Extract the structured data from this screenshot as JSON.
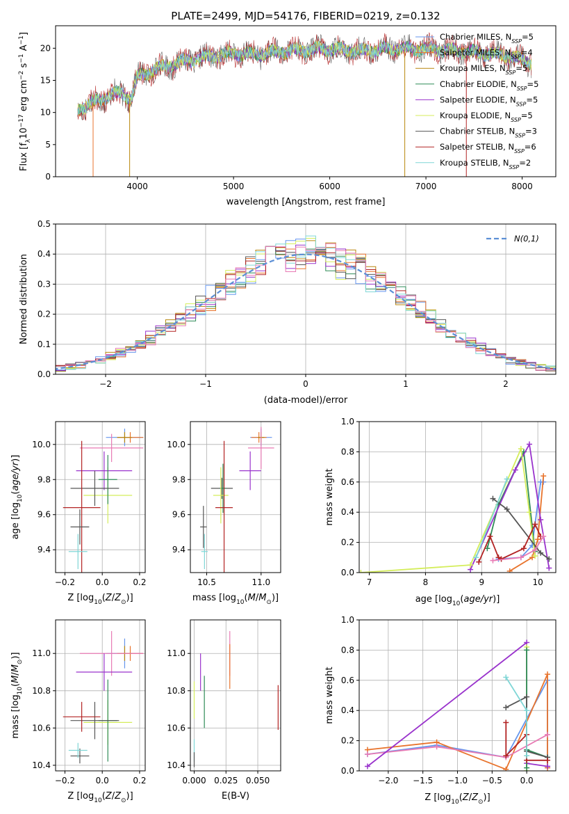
{
  "figure": {
    "title": "PLATE=2499, MJD=54176, FIBERID=0219, z=0.132"
  },
  "palette": {
    "Chabrier MILES": "#6495ed",
    "Salpeter MILES": "#e8732c",
    "Kroupa MILES": "#b8860b",
    "Chabrier ELODIE": "#2e8b57",
    "Salpeter ELODIE": "#9932cc",
    "Kroupa ELODIE": "#d4ed5a",
    "Chabrier STELIB": "#555555",
    "Salpeter STELIB": "#b22222",
    "Kroupa STELIB": "#7fd6d6",
    "extra_pink": "#e87ab4",
    "extra_orange": "#f28020",
    "normal_curve": "#5b8fd6"
  },
  "chart_data": [
    {
      "id": "spectrum",
      "type": "line",
      "xlabel": "wavelength [Angstrom, rest frame]",
      "ylabel": "Flux [f_λ10^-17 erg cm^-2 s^-1 A^-1]",
      "xlim": [
        3150,
        8350
      ],
      "ylim": [
        0,
        23.5
      ],
      "xticks": [
        4000,
        5000,
        6000,
        7000,
        8000
      ],
      "yticks": [
        0,
        5,
        10,
        15,
        20
      ],
      "legend_position": "upper-right",
      "legend": [
        {
          "model": "Chabrier MILES",
          "nssp": "5"
        },
        {
          "model": "Salpeter MILES",
          "nssp": "4"
        },
        {
          "model": "Kroupa MILES",
          "nssp": "5"
        },
        {
          "model": "Chabrier ELODIE",
          "nssp": "5"
        },
        {
          "model": "Salpeter ELODIE",
          "nssp": "5"
        },
        {
          "model": "Kroupa ELODIE",
          "nssp": "5"
        },
        {
          "model": "Chabrier STELIB",
          "nssp": "3"
        },
        {
          "model": "Salpeter STELIB",
          "nssp": "6"
        },
        {
          "model": "Kroupa STELIB",
          "nssp": "2"
        }
      ],
      "continuum": [
        [
          3380,
          10.5
        ],
        [
          3500,
          11.2
        ],
        [
          3600,
          12.0
        ],
        [
          3750,
          12.8
        ],
        [
          3850,
          13.0
        ],
        [
          3930,
          12.0
        ],
        [
          4000,
          15.5
        ],
        [
          4200,
          16.8
        ],
        [
          4500,
          18.0
        ],
        [
          4800,
          18.8
        ],
        [
          5000,
          19.2
        ],
        [
          5200,
          19.0
        ],
        [
          5500,
          19.5
        ],
        [
          5800,
          19.8
        ],
        [
          6000,
          19.9
        ],
        [
          6300,
          19.5
        ],
        [
          6600,
          19.9
        ],
        [
          7000,
          19.9
        ],
        [
          7400,
          19.5
        ],
        [
          7800,
          19.0
        ],
        [
          8100,
          17.8
        ]
      ],
      "drops": [
        {
          "series": "Salpeter MILES",
          "x": 3540
        },
        {
          "series": "Kroupa MILES",
          "x": 3920
        },
        {
          "series": "Kroupa MILES",
          "x": 6780
        },
        {
          "series": "Salpeter STELIB",
          "x": 7420
        }
      ]
    },
    {
      "id": "residual_histogram",
      "type": "histogram",
      "xlabel": "(data-model)/error",
      "ylabel": "Normed distribution",
      "xlim": [
        -2.5,
        2.5
      ],
      "ylim": [
        0,
        0.5
      ],
      "xticks": [
        -2,
        -1,
        0,
        1,
        2
      ],
      "yticks": [
        0.0,
        0.1,
        0.2,
        0.3,
        0.4,
        0.5
      ],
      "legend": [
        "N(0,1)"
      ],
      "legend_position": "upper-right",
      "grid": true,
      "bin_width": 0.1,
      "normal": {
        "mean": 0,
        "sigma": 1
      }
    },
    {
      "id": "age_vs_Z",
      "type": "errorbar",
      "xlabel": "Z [log10(Z/Z⊙)]",
      "ylabel": "age  [log10(age/yr)]",
      "xlim": [
        -0.25,
        0.23
      ],
      "ylim": [
        9.27,
        10.13
      ],
      "xticks": [
        -0.2,
        0.0,
        0.2
      ],
      "yticks": [
        9.4,
        9.6,
        9.8,
        10.0
      ],
      "grid": true,
      "points": [
        {
          "series": "Chabrier MILES",
          "x": 0.12,
          "xerr": 0.1,
          "y": 10.04,
          "yerr": 0.05
        },
        {
          "series": "Salpeter MILES",
          "x": 0.15,
          "xerr": 0.07,
          "y": 10.04,
          "yerr": 0.03
        },
        {
          "series": "Kroupa MILES",
          "x": 0.12,
          "xerr": 0.04,
          "y": 10.04,
          "yerr": 0.03
        },
        {
          "series": "extra_pink",
          "x": 0.05,
          "xerr": 0.17,
          "y": 9.98,
          "yerr": 0.08
        },
        {
          "series": "Kroupa ELODIE",
          "x": 0.03,
          "xerr": 0.13,
          "y": 9.71,
          "yerr": 0.16
        },
        {
          "series": "Salpeter ELODIE",
          "x": 0.01,
          "xerr": 0.15,
          "y": 9.85,
          "yerr": 0.11
        },
        {
          "series": "Chabrier ELODIE",
          "x": 0.03,
          "xerr": 0.05,
          "y": 9.8,
          "yerr": 0.14
        },
        {
          "series": "Chabrier STELIB",
          "x": -0.04,
          "xerr": 0.13,
          "y": 9.75,
          "yerr": 0.1
        },
        {
          "series": "Salpeter STELIB",
          "x": -0.11,
          "xerr": 0.1,
          "y": 9.64,
          "yerr": 0.38
        },
        {
          "series": "Chabrier STELIB",
          "x": -0.12,
          "xerr": 0.05,
          "y": 9.53,
          "yerr": 0.1
        },
        {
          "series": "Kroupa STELIB",
          "x": -0.13,
          "xerr": 0.05,
          "y": 9.39,
          "yerr": 0.1
        }
      ]
    },
    {
      "id": "age_vs_mass",
      "type": "errorbar",
      "xlabel": "mass [log10(M/M⊙)]",
      "ylabel": "",
      "xlim": [
        10.35,
        11.18
      ],
      "ylim": [
        9.27,
        10.13
      ],
      "xticks": [
        10.5,
        11.0
      ],
      "yticks": [
        9.4,
        9.6,
        9.8,
        10.0
      ],
      "grid": true,
      "points": [
        {
          "series": "Chabrier MILES",
          "x": 11.0,
          "xerr": 0.1,
          "y": 10.04,
          "yerr": 0.05
        },
        {
          "series": "Salpeter MILES",
          "x": 10.98,
          "xerr": 0.07,
          "y": 10.04,
          "yerr": 0.03
        },
        {
          "series": "Kroupa MILES",
          "x": 11.0,
          "xerr": 0.03,
          "y": 10.04,
          "yerr": 0.03
        },
        {
          "series": "extra_pink",
          "x": 11.0,
          "xerr": 0.12,
          "y": 9.98,
          "yerr": 0.12
        },
        {
          "series": "Salpeter ELODIE",
          "x": 10.9,
          "xerr": 0.1,
          "y": 9.85,
          "yerr": 0.11
        },
        {
          "series": "Chabrier STELIB",
          "x": 10.64,
          "xerr": 0.1,
          "y": 9.75,
          "yerr": 0.06
        },
        {
          "series": "Chabrier ELODIE",
          "x": 10.65,
          "xerr": 0.03,
          "y": 9.75,
          "yerr": 0.14
        },
        {
          "series": "Kroupa ELODIE",
          "x": 10.63,
          "xerr": 0.07,
          "y": 9.71,
          "yerr": 0.16
        },
        {
          "series": "Salpeter STELIB",
          "x": 10.66,
          "xerr": 0.08,
          "y": 9.64,
          "yerr": 0.38
        },
        {
          "series": "Chabrier STELIB",
          "x": 10.47,
          "xerr": 0.03,
          "y": 9.53,
          "yerr": 0.12
        },
        {
          "series": "Kroupa STELIB",
          "x": 10.48,
          "xerr": 0.03,
          "y": 9.39,
          "yerr": 0.1
        }
      ]
    },
    {
      "id": "mass_weight_vs_age",
      "type": "line",
      "xlabel": "age  [log10(age/yr)]",
      "ylabel": "mass weight",
      "xlim": [
        6.82,
        10.32
      ],
      "ylim": [
        0,
        1.0
      ],
      "xticks": [
        7,
        8,
        9,
        10
      ],
      "yticks": [
        0.0,
        0.2,
        0.4,
        0.6,
        0.8,
        1.0
      ],
      "grid": true,
      "series": [
        {
          "name": "Chabrier MILES",
          "points": [
            [
              9.3,
              0.09
            ],
            [
              9.7,
              0.1
            ],
            [
              9.9,
              0.18
            ],
            [
              10.05,
              0.6
            ],
            [
              10.1,
              0.6
            ]
          ]
        },
        {
          "name": "Salpeter MILES",
          "points": [
            [
              9.5,
              0.01
            ],
            [
              9.9,
              0.1
            ],
            [
              10.0,
              0.22
            ],
            [
              10.1,
              0.64
            ]
          ]
        },
        {
          "name": "Chabrier ELODIE",
          "points": [
            [
              9.1,
              0.16
            ],
            [
              9.3,
              0.45
            ],
            [
              9.75,
              0.8
            ],
            [
              9.95,
              0.14
            ]
          ]
        },
        {
          "name": "Salpeter ELODIE",
          "points": [
            [
              8.8,
              0.02
            ],
            [
              9.6,
              0.68
            ],
            [
              9.85,
              0.85
            ],
            [
              10.05,
              0.35
            ],
            [
              10.2,
              0.03
            ]
          ]
        },
        {
          "name": "Kroupa ELODIE",
          "points": [
            [
              6.85,
              0.0
            ],
            [
              8.8,
              0.05
            ],
            [
              9.7,
              0.82
            ],
            [
              9.85,
              0.4
            ],
            [
              9.95,
              0.11
            ]
          ]
        },
        {
          "name": "Chabrier STELIB",
          "points": [
            [
              9.2,
              0.49
            ],
            [
              9.45,
              0.42
            ],
            [
              10.05,
              0.13
            ],
            [
              10.2,
              0.09
            ]
          ]
        },
        {
          "name": "Salpeter STELIB",
          "points": [
            [
              8.95,
              0.07
            ],
            [
              9.15,
              0.24
            ],
            [
              9.3,
              0.1
            ],
            [
              9.35,
              0.09
            ],
            [
              9.75,
              0.16
            ],
            [
              9.95,
              0.32
            ],
            [
              10.05,
              0.24
            ]
          ]
        },
        {
          "name": "Kroupa STELIB",
          "points": [
            [
              8.9,
              0.1
            ],
            [
              9.45,
              0.62
            ]
          ]
        },
        {
          "name": "extra_pink",
          "points": [
            [
              9.2,
              0.08
            ],
            [
              9.7,
              0.1
            ],
            [
              9.95,
              0.15
            ],
            [
              10.1,
              0.24
            ]
          ]
        }
      ]
    },
    {
      "id": "mass_vs_Z",
      "type": "errorbar",
      "xlabel": "Z [log10(Z/Z⊙)]",
      "ylabel": "mass [log10(M/M⊙)]",
      "xlim": [
        -0.25,
        0.23
      ],
      "ylim": [
        10.37,
        11.18
      ],
      "xticks": [
        -0.2,
        0.0,
        0.2
      ],
      "yticks": [
        10.4,
        10.6,
        10.8,
        11.0
      ],
      "grid": true,
      "points": [
        {
          "series": "Chabrier MILES",
          "x": 0.12,
          "xerr": 0.1,
          "y": 11.0,
          "yerr": 0.08
        },
        {
          "series": "Salpeter MILES",
          "x": 0.15,
          "xerr": 0.07,
          "y": 11.0,
          "yerr": 0.04
        },
        {
          "series": "Kroupa MILES",
          "x": 0.12,
          "xerr": 0.04,
          "y": 11.0,
          "yerr": 0.04
        },
        {
          "series": "extra_pink",
          "x": 0.05,
          "xerr": 0.17,
          "y": 11.0,
          "yerr": 0.12
        },
        {
          "series": "Salpeter ELODIE",
          "x": 0.01,
          "xerr": 0.15,
          "y": 10.9,
          "yerr": 0.1
        },
        {
          "series": "Kroupa ELODIE",
          "x": 0.03,
          "xerr": 0.13,
          "y": 10.63,
          "yerr": 0.12
        },
        {
          "series": "Chabrier ELODIE",
          "x": 0.03,
          "xerr": 0.05,
          "y": 10.64,
          "yerr": 0.22
        },
        {
          "series": "Chabrier STELIB",
          "x": -0.04,
          "xerr": 0.13,
          "y": 10.64,
          "yerr": 0.1
        },
        {
          "series": "Salpeter STELIB",
          "x": -0.11,
          "xerr": 0.1,
          "y": 10.66,
          "yerr": 0.08
        },
        {
          "series": "Chabrier STELIB",
          "x": -0.12,
          "xerr": 0.05,
          "y": 10.45,
          "yerr": 0.04
        },
        {
          "series": "Kroupa STELIB",
          "x": -0.13,
          "xerr": 0.05,
          "y": 10.48,
          "yerr": 0.04
        }
      ]
    },
    {
      "id": "mass_vs_ebv",
      "type": "errorbar",
      "xlabel": "E(B-V)",
      "ylabel": "",
      "xlim": [
        -0.003,
        0.068
      ],
      "ylim": [
        10.37,
        11.18
      ],
      "xticks": [
        0.0,
        0.025,
        0.05
      ],
      "ytick_values": [
        10.4,
        10.6,
        10.8,
        11.0
      ],
      "grid": true,
      "points": [
        {
          "series": "Kroupa ELODIE",
          "x": 0.0,
          "y": 10.75,
          "yerr": 0.1
        },
        {
          "series": "Kroupa STELIB",
          "x": 0.0,
          "y": 10.48,
          "yerr": 0.06
        },
        {
          "series": "Chabrier STELIB",
          "x": 0.0,
          "y": 10.43,
          "yerr": 0.04
        },
        {
          "series": "Salpeter ELODIE",
          "x": 0.005,
          "y": 10.9,
          "yerr": 0.1
        },
        {
          "series": "Chabrier ELODIE",
          "x": 0.008,
          "y": 10.74,
          "yerr": 0.14
        },
        {
          "series": "extra_pink",
          "x": 0.028,
          "y": 11.0,
          "yerr": 0.12
        },
        {
          "series": "Salpeter MILES",
          "x": 0.028,
          "y": 10.93,
          "yerr": 0.12
        },
        {
          "series": "Salpeter STELIB",
          "x": 0.066,
          "y": 10.71,
          "yerr": 0.12
        }
      ]
    },
    {
      "id": "mass_weight_vs_Z",
      "type": "line",
      "xlabel": "Z [log10(Z/Z⊙)]",
      "ylabel": "mass weight",
      "xlim": [
        -2.42,
        0.42
      ],
      "ylim": [
        0,
        1.0
      ],
      "xticks": [
        -2.0,
        -1.5,
        -1.0,
        -0.5,
        0.0
      ],
      "yticks": [
        0.0,
        0.2,
        0.4,
        0.6,
        0.8,
        1.0
      ],
      "grid": true,
      "series": [
        {
          "name": "Chabrier MILES",
          "points": [
            [
              -2.3,
              0.11
            ],
            [
              -1.3,
              0.17
            ],
            [
              -0.3,
              0.09
            ],
            [
              0.3,
              0.6
            ],
            [
              0.3,
              0.03
            ]
          ]
        },
        {
          "name": "Salpeter MILES",
          "points": [
            [
              -2.3,
              0.14
            ],
            [
              -1.3,
              0.19
            ],
            [
              -0.3,
              0.01
            ],
            [
              0.3,
              0.64
            ],
            [
              0.3,
              0.02
            ]
          ]
        },
        {
          "name": "extra_pink",
          "points": [
            [
              -2.3,
              0.11
            ],
            [
              -1.3,
              0.16
            ],
            [
              -0.3,
              0.09
            ],
            [
              0.3,
              0.24
            ]
          ]
        },
        {
          "name": "Salpeter ELODIE",
          "points": [
            [
              -2.3,
              0.03
            ],
            [
              0.0,
              0.85
            ],
            [
              0.0,
              0.05
            ],
            [
              0.3,
              0.03
            ]
          ]
        },
        {
          "name": "Kroupa ELODIE",
          "points": [
            [
              0.0,
              0.0
            ],
            [
              0.0,
              0.82
            ],
            [
              0.0,
              0.1
            ]
          ]
        },
        {
          "name": "Chabrier ELODIE",
          "points": [
            [
              0.0,
              0.02
            ],
            [
              0.0,
              0.8
            ],
            [
              0.0,
              0.14
            ],
            [
              0.3,
              0.09
            ]
          ]
        },
        {
          "name": "Chabrier STELIB",
          "points": [
            [
              -0.3,
              0.42
            ],
            [
              0.0,
              0.49
            ],
            [
              0.0,
              0.13
            ],
            [
              0.3,
              0.09
            ]
          ]
        },
        {
          "name": "Salpeter STELIB",
          "points": [
            [
              -0.3,
              0.32
            ],
            [
              -0.3,
              0.1
            ],
            [
              0.0,
              0.24
            ],
            [
              0.0,
              0.07
            ],
            [
              0.3,
              0.07
            ]
          ]
        },
        {
          "name": "Kroupa STELIB",
          "points": [
            [
              -0.3,
              0.62
            ],
            [
              0.0,
              0.4
            ],
            [
              0.0,
              0.1
            ]
          ]
        }
      ]
    }
  ]
}
